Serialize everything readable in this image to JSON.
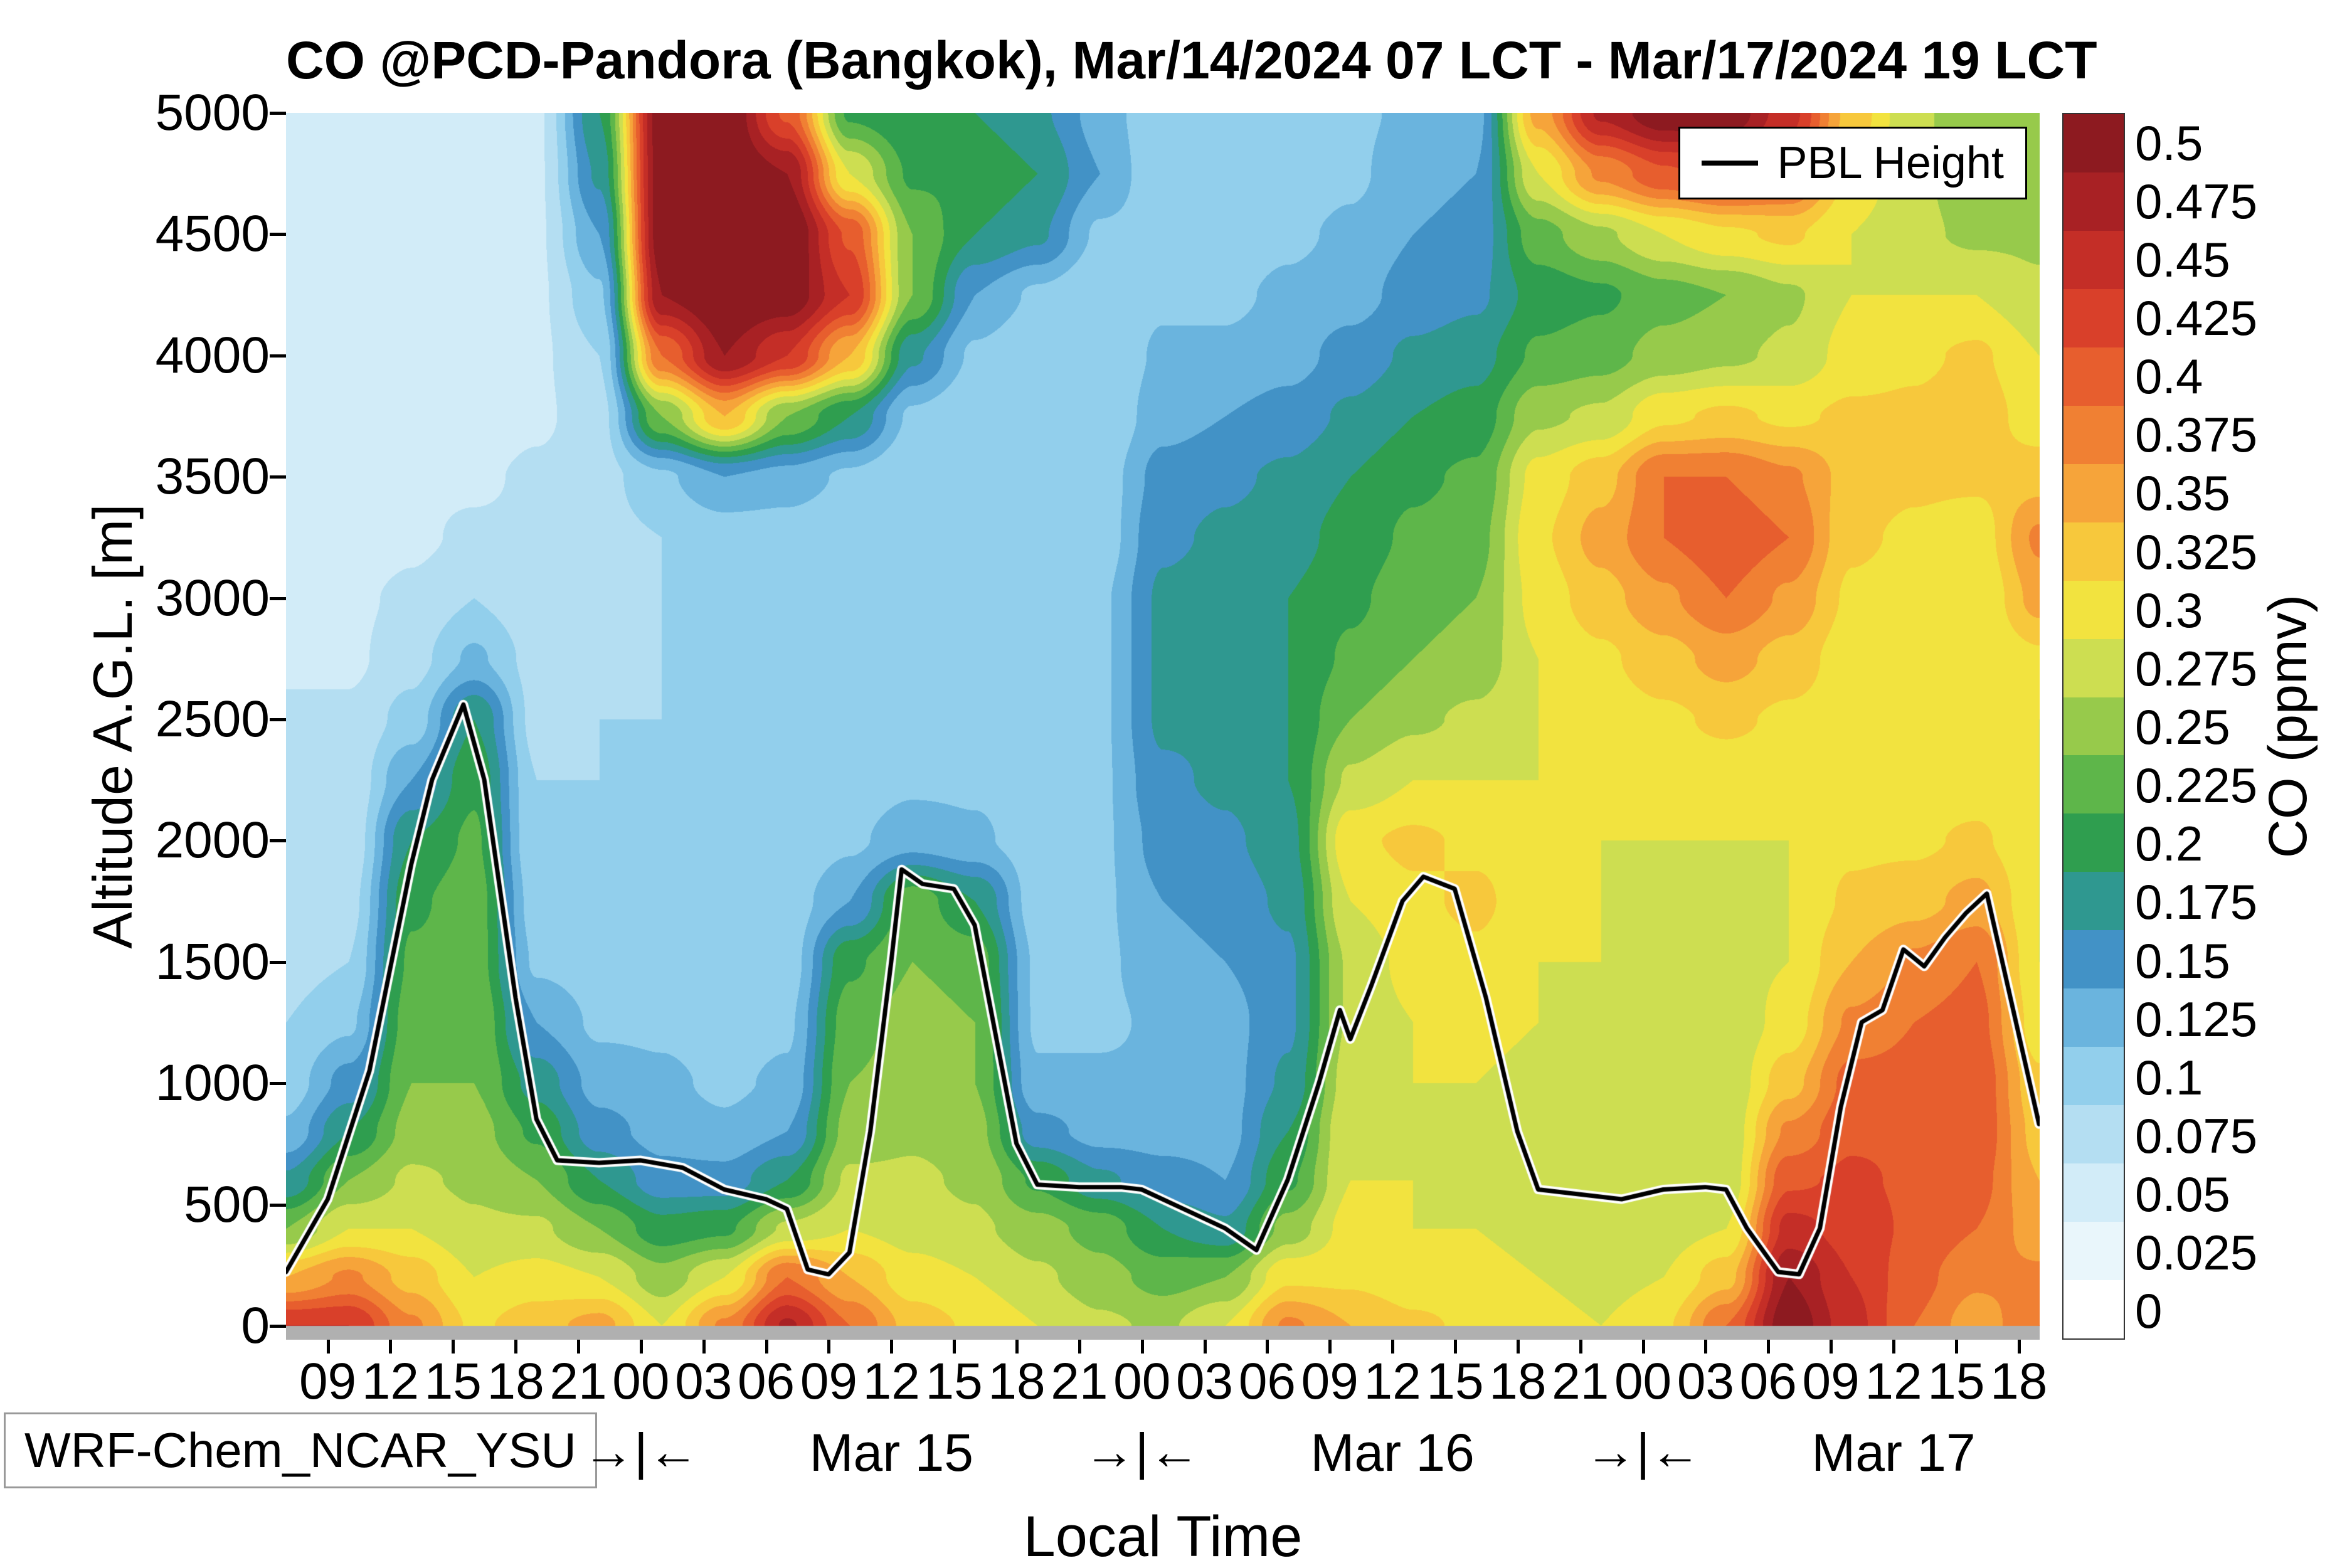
{
  "model_label": "WRF-Chem_NCAR_YSU",
  "chart_data": {
    "type": "heatmap",
    "title": "CO @PCD-Pandora (Bangkok), Mar/14/2024 07 LCT - Mar/17/2024 19 LCT",
    "xlabel": "Local Time",
    "ylabel": "Altitude A.G.L. [m]",
    "legend_pbl": "PBL Height",
    "x_unit_hours_since": "Mar/14/2024 07:00 LCT",
    "xlim_hours": [
      0,
      84
    ],
    "ylim_m": [
      0,
      5000
    ],
    "y_ticks_m": [
      0,
      500,
      1000,
      1500,
      2000,
      2500,
      3000,
      3500,
      4000,
      4500,
      5000
    ],
    "x_tick_hours": [
      2,
      5,
      8,
      11,
      14,
      17,
      20,
      23,
      26,
      29,
      32,
      35,
      38,
      41,
      44,
      47,
      50,
      53,
      56,
      59,
      62,
      65,
      68,
      71,
      74,
      77,
      80,
      83
    ],
    "x_tick_labels": [
      "09",
      "12",
      "15",
      "18",
      "21",
      "00",
      "03",
      "06",
      "09",
      "12",
      "15",
      "18",
      "21",
      "00",
      "03",
      "06",
      "09",
      "12",
      "15",
      "18",
      "21",
      "00",
      "03",
      "06",
      "09",
      "12",
      "15",
      "18"
    ],
    "day_separators": {
      "symbol": "→|←",
      "hours": [
        17,
        41,
        65
      ]
    },
    "date_labels": [
      {
        "label": "Mar 15",
        "hour": 29
      },
      {
        "label": "Mar 16",
        "hour": 53
      },
      {
        "label": "Mar 17",
        "hour": 77
      }
    ],
    "grid": {
      "x_hours": [
        0,
        3,
        6,
        9,
        12,
        15,
        18,
        21,
        24,
        27,
        30,
        33,
        36,
        39,
        42,
        45,
        48,
        51,
        54,
        57,
        60,
        63,
        66,
        69,
        72,
        75,
        78,
        81,
        84
      ],
      "altitudes_m": [
        0,
        200,
        400,
        600,
        800,
        1000,
        1250,
        1500,
        1750,
        2000,
        2250,
        2500,
        2750,
        3000,
        3250,
        3500,
        3750,
        4000,
        4250,
        4500,
        4750,
        5000
      ],
      "co_ppmv": [
        [
          0.45,
          0.35,
          0.25,
          0.18,
          0.13,
          0.11,
          0.1,
          0.09,
          0.08,
          0.08,
          0.08,
          0.08,
          0.07,
          0.07,
          0.06,
          0.06,
          0.05,
          0.05,
          0.05,
          0.05,
          0.05,
          0.05
        ],
        [
          0.45,
          0.38,
          0.3,
          0.25,
          0.2,
          0.16,
          0.12,
          0.1,
          0.09,
          0.08,
          0.08,
          0.08,
          0.07,
          0.07,
          0.06,
          0.06,
          0.06,
          0.05,
          0.05,
          0.05,
          0.05,
          0.05
        ],
        [
          0.38,
          0.34,
          0.3,
          0.28,
          0.26,
          0.25,
          0.24,
          0.23,
          0.22,
          0.2,
          0.15,
          0.11,
          0.09,
          0.08,
          0.07,
          0.07,
          0.06,
          0.06,
          0.05,
          0.05,
          0.05,
          0.05
        ],
        [
          0.32,
          0.3,
          0.28,
          0.27,
          0.26,
          0.25,
          0.25,
          0.24,
          0.24,
          0.23,
          0.22,
          0.2,
          0.13,
          0.1,
          0.08,
          0.07,
          0.06,
          0.06,
          0.06,
          0.05,
          0.05,
          0.05
        ],
        [
          0.34,
          0.31,
          0.28,
          0.25,
          0.22,
          0.19,
          0.15,
          0.12,
          0.11,
          0.1,
          0.1,
          0.09,
          0.09,
          0.08,
          0.08,
          0.08,
          0.07,
          0.07,
          0.07,
          0.07,
          0.07,
          0.07
        ],
        [
          0.36,
          0.3,
          0.25,
          0.2,
          0.16,
          0.14,
          0.12,
          0.11,
          0.11,
          0.1,
          0.1,
          0.1,
          0.09,
          0.09,
          0.09,
          0.09,
          0.09,
          0.1,
          0.12,
          0.15,
          0.18,
          0.2
        ],
        [
          0.3,
          0.26,
          0.21,
          0.16,
          0.14,
          0.13,
          0.12,
          0.12,
          0.11,
          0.11,
          0.1,
          0.1,
          0.1,
          0.1,
          0.1,
          0.12,
          0.25,
          0.4,
          0.5,
          0.52,
          0.52,
          0.52
        ],
        [
          0.38,
          0.3,
          0.22,
          0.16,
          0.13,
          0.12,
          0.11,
          0.11,
          0.1,
          0.1,
          0.1,
          0.1,
          0.1,
          0.1,
          0.11,
          0.15,
          0.35,
          0.5,
          0.53,
          0.53,
          0.53,
          0.53
        ],
        [
          0.48,
          0.4,
          0.28,
          0.2,
          0.15,
          0.13,
          0.12,
          0.11,
          0.11,
          0.1,
          0.1,
          0.1,
          0.1,
          0.1,
          0.11,
          0.14,
          0.25,
          0.45,
          0.52,
          0.53,
          0.5,
          0.42
        ],
        [
          0.4,
          0.35,
          0.3,
          0.28,
          0.26,
          0.25,
          0.24,
          0.22,
          0.15,
          0.12,
          0.11,
          0.1,
          0.1,
          0.1,
          0.1,
          0.12,
          0.2,
          0.35,
          0.45,
          0.42,
          0.3,
          0.22
        ],
        [
          0.34,
          0.31,
          0.29,
          0.28,
          0.27,
          0.26,
          0.26,
          0.25,
          0.24,
          0.14,
          0.12,
          0.11,
          0.1,
          0.1,
          0.1,
          0.1,
          0.12,
          0.18,
          0.25,
          0.25,
          0.22,
          0.2
        ],
        [
          0.32,
          0.3,
          0.28,
          0.27,
          0.26,
          0.25,
          0.25,
          0.24,
          0.2,
          0.13,
          0.12,
          0.11,
          0.1,
          0.1,
          0.1,
          0.1,
          0.1,
          0.12,
          0.15,
          0.2,
          0.22,
          0.2
        ],
        [
          0.3,
          0.28,
          0.26,
          0.22,
          0.16,
          0.13,
          0.12,
          0.12,
          0.11,
          0.11,
          0.11,
          0.11,
          0.11,
          0.11,
          0.1,
          0.1,
          0.1,
          0.1,
          0.12,
          0.18,
          0.2,
          0.18
        ],
        [
          0.28,
          0.26,
          0.24,
          0.18,
          0.14,
          0.13,
          0.12,
          0.12,
          0.12,
          0.12,
          0.12,
          0.12,
          0.12,
          0.12,
          0.11,
          0.11,
          0.1,
          0.1,
          0.1,
          0.12,
          0.15,
          0.14
        ],
        [
          0.27,
          0.24,
          0.2,
          0.16,
          0.14,
          0.13,
          0.13,
          0.14,
          0.15,
          0.16,
          0.17,
          0.18,
          0.18,
          0.18,
          0.17,
          0.16,
          0.14,
          0.13,
          0.12,
          0.11,
          0.1,
          0.1
        ],
        [
          0.3,
          0.25,
          0.18,
          0.15,
          0.14,
          0.14,
          0.14,
          0.15,
          0.16,
          0.17,
          0.18,
          0.18,
          0.19,
          0.19,
          0.18,
          0.17,
          0.15,
          0.13,
          0.12,
          0.11,
          0.11,
          0.1
        ],
        [
          0.38,
          0.32,
          0.26,
          0.22,
          0.2,
          0.18,
          0.17,
          0.17,
          0.18,
          0.19,
          0.2,
          0.2,
          0.2,
          0.2,
          0.19,
          0.18,
          0.16,
          0.14,
          0.13,
          0.12,
          0.11,
          0.11
        ],
        [
          0.35,
          0.32,
          0.31,
          0.3,
          0.3,
          0.29,
          0.28,
          0.28,
          0.3,
          0.32,
          0.28,
          0.25,
          0.23,
          0.22,
          0.21,
          0.2,
          0.18,
          0.16,
          0.14,
          0.13,
          0.12,
          0.12
        ],
        [
          0.33,
          0.31,
          0.3,
          0.3,
          0.3,
          0.3,
          0.3,
          0.31,
          0.32,
          0.33,
          0.3,
          0.27,
          0.25,
          0.24,
          0.23,
          0.22,
          0.2,
          0.18,
          0.16,
          0.15,
          0.14,
          0.13
        ],
        [
          0.32,
          0.31,
          0.3,
          0.3,
          0.3,
          0.3,
          0.31,
          0.32,
          0.33,
          0.32,
          0.3,
          0.28,
          0.26,
          0.25,
          0.24,
          0.23,
          0.21,
          0.19,
          0.17,
          0.16,
          0.15,
          0.14
        ],
        [
          0.31,
          0.3,
          0.29,
          0.29,
          0.29,
          0.29,
          0.3,
          0.3,
          0.31,
          0.31,
          0.3,
          0.3,
          0.3,
          0.31,
          0.32,
          0.31,
          0.27,
          0.23,
          0.21,
          0.24,
          0.3,
          0.36
        ],
        [
          0.3,
          0.29,
          0.28,
          0.28,
          0.28,
          0.28,
          0.29,
          0.3,
          0.3,
          0.3,
          0.3,
          0.31,
          0.32,
          0.34,
          0.36,
          0.34,
          0.28,
          0.24,
          0.22,
          0.27,
          0.38,
          0.48
        ],
        [
          0.32,
          0.3,
          0.29,
          0.28,
          0.28,
          0.28,
          0.29,
          0.29,
          0.3,
          0.3,
          0.31,
          0.32,
          0.34,
          0.37,
          0.4,
          0.4,
          0.32,
          0.26,
          0.24,
          0.3,
          0.42,
          0.52
        ],
        [
          0.4,
          0.34,
          0.3,
          0.28,
          0.28,
          0.28,
          0.28,
          0.29,
          0.29,
          0.3,
          0.31,
          0.33,
          0.36,
          0.4,
          0.42,
          0.4,
          0.33,
          0.27,
          0.25,
          0.32,
          0.44,
          0.52
        ],
        [
          0.52,
          0.5,
          0.46,
          0.42,
          0.38,
          0.34,
          0.31,
          0.3,
          0.3,
          0.3,
          0.31,
          0.32,
          0.34,
          0.37,
          0.4,
          0.38,
          0.32,
          0.28,
          0.27,
          0.33,
          0.42,
          0.46
        ],
        [
          0.46,
          0.45,
          0.44,
          0.43,
          0.42,
          0.41,
          0.38,
          0.35,
          0.33,
          0.32,
          0.31,
          0.31,
          0.31,
          0.32,
          0.33,
          0.34,
          0.33,
          0.31,
          0.3,
          0.3,
          0.32,
          0.34
        ],
        [
          0.4,
          0.41,
          0.42,
          0.42,
          0.42,
          0.41,
          0.4,
          0.38,
          0.34,
          0.32,
          0.31,
          0.31,
          0.31,
          0.31,
          0.32,
          0.33,
          0.33,
          0.32,
          0.3,
          0.28,
          0.28,
          0.28
        ],
        [
          0.36,
          0.38,
          0.4,
          0.41,
          0.42,
          0.42,
          0.41,
          0.4,
          0.36,
          0.33,
          0.31,
          0.3,
          0.3,
          0.3,
          0.31,
          0.33,
          0.34,
          0.33,
          0.3,
          0.27,
          0.26,
          0.26
        ],
        [
          0.4,
          0.38,
          0.36,
          0.35,
          0.34,
          0.33,
          0.31,
          0.3,
          0.3,
          0.3,
          0.3,
          0.3,
          0.32,
          0.36,
          0.38,
          0.34,
          0.31,
          0.3,
          0.28,
          0.27,
          0.26,
          0.25
        ]
      ]
    },
    "pbl_height": {
      "hours": [
        0,
        2,
        4,
        6,
        7,
        8.5,
        9.5,
        11,
        12,
        13,
        15,
        17,
        19,
        21,
        23,
        24,
        25,
        26,
        27,
        28,
        29,
        29.5,
        30.5,
        32,
        33,
        34,
        35,
        36,
        38,
        40,
        41,
        43,
        45,
        46.5,
        48,
        49.5,
        50.5,
        51,
        52,
        53.5,
        54.5,
        56,
        57.5,
        59,
        60,
        62,
        64,
        66,
        68,
        69,
        70,
        71.5,
        72.5,
        73.5,
        74.5,
        75.5,
        76.5,
        77.5,
        78.5,
        79.5,
        80.5,
        81.5,
        82.5,
        84
      ],
      "height_m": [
        220,
        520,
        1050,
        1900,
        2250,
        2560,
        2250,
        1350,
        850,
        680,
        670,
        680,
        650,
        560,
        520,
        480,
        230,
        210,
        300,
        800,
        1500,
        1880,
        1820,
        1800,
        1650,
        1200,
        750,
        580,
        570,
        570,
        560,
        480,
        400,
        310,
        600,
        1000,
        1300,
        1180,
        1400,
        1750,
        1850,
        1800,
        1350,
        800,
        560,
        540,
        520,
        560,
        570,
        560,
        400,
        220,
        210,
        400,
        900,
        1250,
        1300,
        1550,
        1480,
        1600,
        1700,
        1780,
        1400,
        830
      ]
    },
    "colorbar": {
      "title": "CO (ppmv)",
      "level_step_ppmv": 0.025,
      "levels": [
        0,
        0.025,
        0.05,
        0.075,
        0.1,
        0.125,
        0.15,
        0.175,
        0.2,
        0.225,
        0.25,
        0.275,
        0.3,
        0.325,
        0.35,
        0.375,
        0.4,
        0.425,
        0.45,
        0.475,
        0.5
      ],
      "tick_labels": [
        "0",
        "0.025",
        "0.05",
        "0.075",
        "0.1",
        "0.125",
        "0.15",
        "0.175",
        "0.2",
        "0.225",
        "0.25",
        "0.275",
        "0.3",
        "0.325",
        "0.35",
        "0.375",
        "0.4",
        "0.425",
        "0.45",
        "0.475",
        "0.5"
      ],
      "band_colors": [
        "#ffffff",
        "#e9f6fb",
        "#d2ecf8",
        "#b4def2",
        "#92cfec",
        "#6ab4de",
        "#4292c6",
        "#2f9890",
        "#2f9e4f",
        "#5eb64a",
        "#97ca4b",
        "#cdde51",
        "#f2e33f",
        "#f7c83c",
        "#f6a43a",
        "#f08033",
        "#e75e2e",
        "#d9402a",
        "#c42e27",
        "#a82124",
        "#8d1a20"
      ]
    },
    "surface_strip_color": "#b0b0b0"
  }
}
